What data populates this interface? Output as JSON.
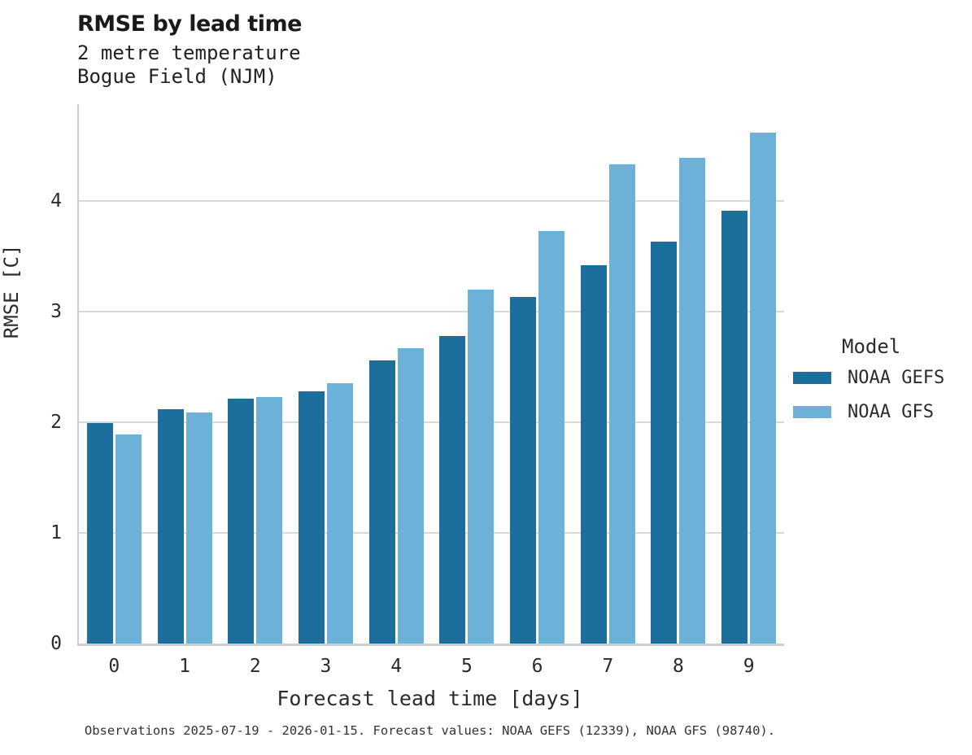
{
  "title": "RMSE by lead time",
  "subtitle_line1": "2 metre temperature",
  "subtitle_line2": "Bogue Field (NJM)",
  "footer": "Observations 2025-07-19 - 2026-01-15. Forecast values: NOAA GEFS (12339), NOAA GFS (98740).",
  "colors": {
    "gefs_bar": "#1c6e9c",
    "gfs_bar": "#6cb1d8",
    "gridline": "#d9d9d9",
    "spine": "#cfcfcf",
    "title_text": "#1a1a1a",
    "body_text": "#2b2b2b"
  },
  "chart_data": {
    "type": "bar",
    "title": "RMSE by lead time",
    "subtitle": [
      "2 metre temperature",
      "Bogue Field (NJM)"
    ],
    "xlabel": "Forecast lead time [days]",
    "ylabel": "RMSE [C]",
    "categories": [
      "0",
      "1",
      "2",
      "3",
      "4",
      "5",
      "6",
      "7",
      "8",
      "9"
    ],
    "series": [
      {
        "name": "NOAA GEFS",
        "color": "#1c6e9c",
        "values": [
          1.99,
          2.12,
          2.21,
          2.28,
          2.56,
          2.78,
          3.13,
          3.42,
          3.63,
          3.91
        ]
      },
      {
        "name": "NOAA GFS",
        "color": "#6cb1d8",
        "values": [
          1.89,
          2.09,
          2.23,
          2.35,
          2.67,
          3.2,
          3.73,
          4.33,
          4.39,
          4.62
        ]
      }
    ],
    "ylim": [
      0,
      4.875
    ],
    "yticks": [
      0,
      1,
      2,
      3,
      4
    ],
    "grid": true,
    "legend_title": "Model",
    "legend_position": "right",
    "caption": "Observations 2025-07-19 - 2026-01-15. Forecast values: NOAA GEFS (12339), NOAA GFS (98740)."
  }
}
